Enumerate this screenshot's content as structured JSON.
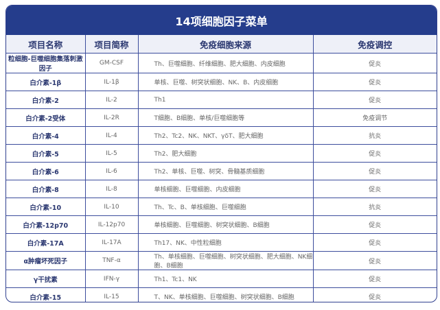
{
  "title": "14项细胞因子菜单",
  "columns": [
    "项目名称",
    "项目简称",
    "免疫细胞来源",
    "免疫调控"
  ],
  "rows": [
    {
      "name": "粒细胞-巨噬细胞集落刺激因子",
      "abbr": "GM-CSF",
      "source": "Th、巨噬细胞、纤维细胞、肥大细胞、内皮细胞",
      "regulation": "促炎"
    },
    {
      "name": "白介素-1β",
      "abbr": "IL-1β",
      "source": "单核、巨噬、树突状细胞、NK、B、内皮细胞",
      "regulation": "促炎"
    },
    {
      "name": "白介素-2",
      "abbr": "IL-2",
      "source": "Th1",
      "regulation": "促炎"
    },
    {
      "name": "白介素-2受体",
      "abbr": "IL-2R",
      "source": "T细胞、B细胞、单核/巨噬细胞等",
      "regulation": "免疫调节"
    },
    {
      "name": "白介素-4",
      "abbr": "IL-4",
      "source": "Th2、Tc2、NK、NKT、γδT、肥大细胞",
      "regulation": "抗炎"
    },
    {
      "name": "白介素-5",
      "abbr": "IL-5",
      "source": "Th2、肥大细胞",
      "regulation": "促炎"
    },
    {
      "name": "白介素-6",
      "abbr": "IL-6",
      "source": "Th2、单核、巨噬、树突、骨髓基质细胞",
      "regulation": "促炎"
    },
    {
      "name": "白介素-8",
      "abbr": "IL-8",
      "source": "单核细胞、巨噬细胞、内皮细胞",
      "regulation": "促炎"
    },
    {
      "name": "白介素-10",
      "abbr": "IL-10",
      "source": "Th、Tc、B、单核细胞、巨噬细胞",
      "regulation": "抗炎"
    },
    {
      "name": "白介素-12p70",
      "abbr": "IL-12p70",
      "source": "单核细胞、巨噬细胞、树突状细胞、B细胞",
      "regulation": "促炎"
    },
    {
      "name": "白介素-17A",
      "abbr": "IL-17A",
      "source": "Th17、NK、中性粒细胞",
      "regulation": "促炎"
    },
    {
      "name": "α肿瘤坏死因子",
      "abbr": "TNF-α",
      "source": "Th、单核细胞、巨噬细胞、树突状细胞、肥大细胞、NK细胞、B细胞",
      "regulation": "促炎"
    },
    {
      "name": "γ干扰素",
      "abbr": "IFN-γ",
      "source": "Th1、Tc1、NK",
      "regulation": "促炎"
    },
    {
      "name": "白介素-15",
      "abbr": "IL-15",
      "source": "T、NK、单核细胞、巨噬细胞、树突状细胞、B细胞",
      "regulation": "促炎"
    }
  ],
  "colors": {
    "header_band": "#253d8c",
    "header_row": "#eef0f8",
    "grid": "#3b4c9c",
    "name_text": "#2a3770"
  }
}
